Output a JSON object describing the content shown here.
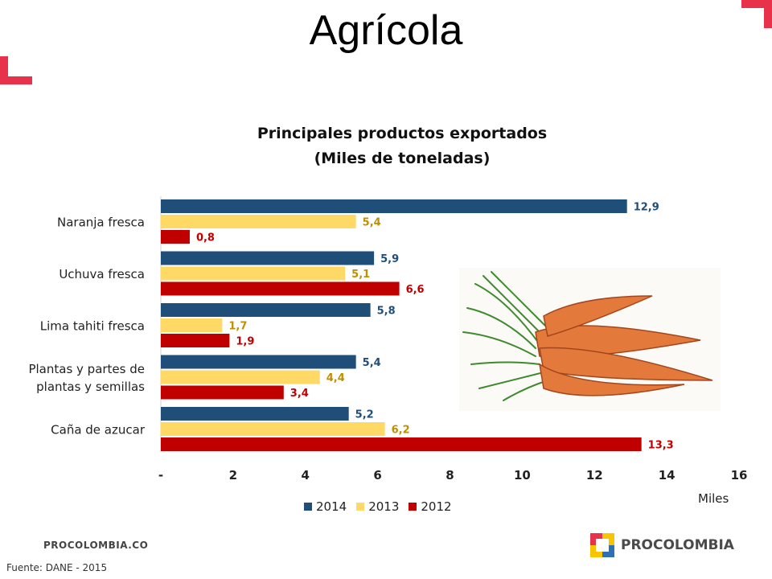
{
  "slide": {
    "title": "Agrícola",
    "footer_site": "PROCOLOMBIA.CO",
    "source": "Fuente: DANE - 2015",
    "brand": "PROCOLOMBIA"
  },
  "colors": {
    "s2014": "#1f4e79",
    "s2013": "#ffd966",
    "s2012": "#c00000",
    "label2014": "#1f4e79",
    "label2013": "#bf8f00",
    "label2012": "#c00000",
    "corner": "#e8314a"
  },
  "chart_data": {
    "type": "bar",
    "orientation": "horizontal",
    "title_lines": [
      "Principales productos exportados",
      "(Miles de toneladas)"
    ],
    "categories": [
      [
        "Naranja fresca"
      ],
      [
        "Uchuva fresca"
      ],
      [
        "Lima tahiti fresca"
      ],
      [
        "Plantas y partes de",
        "plantas y semillas"
      ],
      [
        "Caña de azucar"
      ]
    ],
    "series": [
      {
        "name": "2014",
        "values": [
          12.9,
          5.9,
          5.8,
          5.4,
          5.2
        ],
        "labels": [
          "12,9",
          "5,9",
          "5,8",
          "5,4",
          "5,2"
        ]
      },
      {
        "name": "2013",
        "values": [
          5.4,
          5.1,
          1.7,
          4.4,
          6.2
        ],
        "labels": [
          "5,4",
          "5,1",
          "1,7",
          "4,4",
          "6,2"
        ]
      },
      {
        "name": "2012",
        "values": [
          0.8,
          6.6,
          1.9,
          3.4,
          13.3
        ],
        "labels": [
          "0,8",
          "6,6",
          "1,9",
          "3,4",
          "13,3"
        ]
      }
    ],
    "xlim": [
      0,
      16
    ],
    "xticks": [
      0,
      2,
      4,
      6,
      8,
      10,
      12,
      14,
      16
    ],
    "xtick_labels": [
      "-",
      "2",
      "4",
      "6",
      "8",
      "10",
      "12",
      "14",
      "16"
    ],
    "xlabel": "Miles",
    "legend": "bottom",
    "grid": false
  }
}
